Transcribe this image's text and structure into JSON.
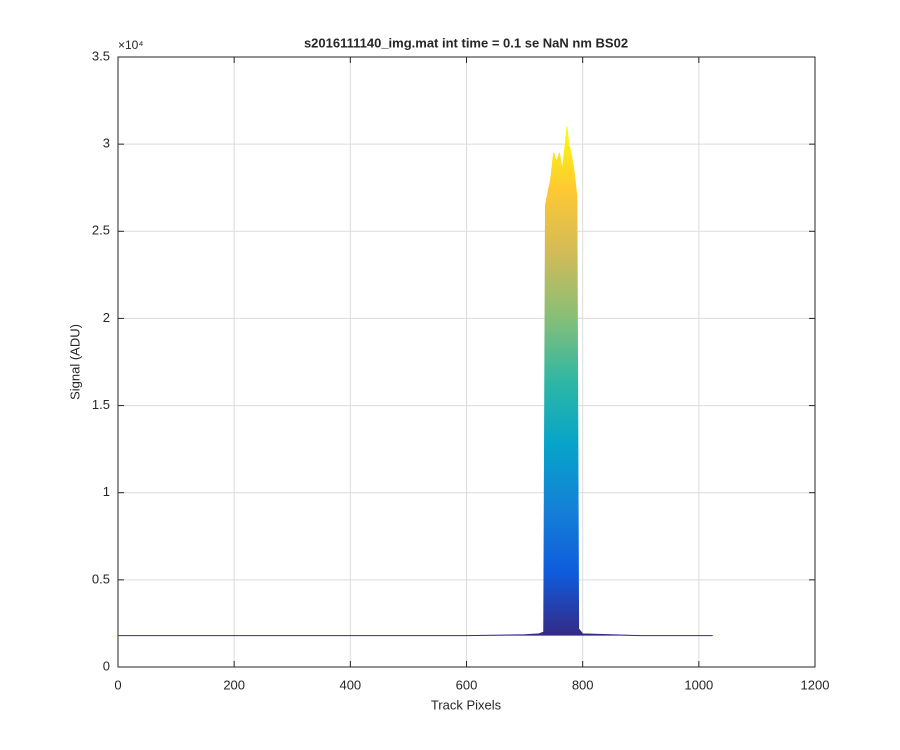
{
  "chart_data": {
    "type": "line",
    "title": "s2016111140_img.mat int time = 0.1 se  NaN nm BS02",
    "x_label": "Track Pixels",
    "y_label": "Signal (ADU)",
    "y_multiplier": "×10⁴",
    "x": [
      1,
      200,
      400,
      600,
      700,
      725,
      733,
      736,
      740,
      745,
      750,
      755,
      760,
      765,
      770,
      773,
      776,
      780,
      785,
      790,
      793,
      800,
      900,
      1024
    ],
    "series": [
      {
        "values": [
          0.18,
          0.18,
          0.18,
          0.18,
          0.185,
          0.19,
          0.2,
          2.65,
          2.72,
          2.8,
          2.95,
          2.9,
          2.95,
          2.85,
          3.0,
          3.1,
          3.0,
          2.95,
          2.85,
          2.7,
          0.22,
          0.19,
          0.18,
          0.18
        ]
      }
    ],
    "colormap": [
      "#352a87",
      "#0f5cdd",
      "#1481d6",
      "#06a4ca",
      "#2eb7a4",
      "#87bf77",
      "#d1bb59",
      "#fec832",
      "#f9fb0e"
    ],
    "xlim": [
      0,
      1200
    ],
    "xticks": [
      0,
      200,
      400,
      600,
      800,
      1000,
      1200
    ],
    "ylim": [
      0,
      3.5
    ],
    "yticks": [
      0,
      0.5,
      1,
      1.5,
      2,
      2.5,
      3,
      3.5
    ],
    "grid": true
  }
}
